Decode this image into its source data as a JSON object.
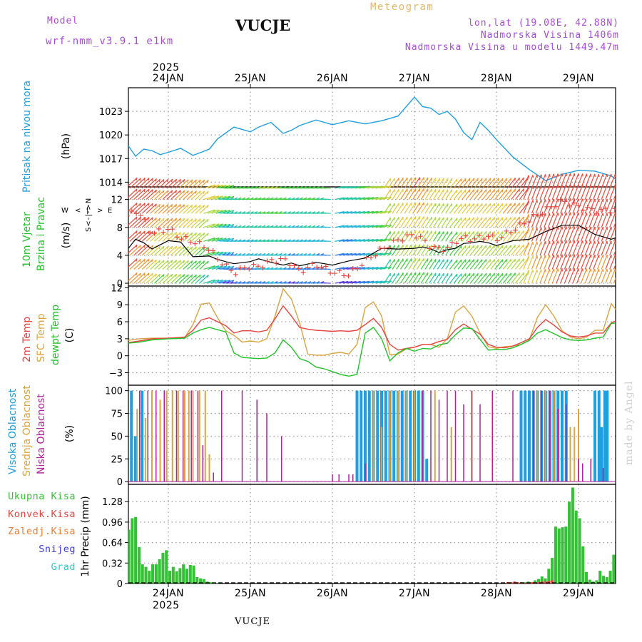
{
  "header": {
    "model_label": "Model",
    "model_name": "wrf-nmm_v3.9.1 e1km",
    "station": "VUCJE",
    "meteogram": "Meteogram",
    "lonlat": "lon,lat (19.08E, 42.88N)",
    "elevation": "Nadmorska Visina 1406m",
    "model_elevation": "Nadmorska Visina u modelu 1449.47m"
  },
  "footer": {
    "station": "VUCJE",
    "watermark": "made by Angel"
  },
  "colors": {
    "pressure": "#1f9fdf",
    "t2m": "#e8433e",
    "tsfc": "#d9a441",
    "dewpt": "#22c22a",
    "high_cloud": "#1f9fdf",
    "mid_cloud": "#d9a441",
    "low_cloud": "#b0229b",
    "total_precip": "#35c135",
    "conv_precip": "#e8433e",
    "frz_precip": "#ef7b2f",
    "snow": "#3a3adf",
    "hail": "#30c8c8",
    "header_purple": "#a64dd6",
    "header_gold": "#e5b865"
  },
  "time_axis": {
    "year": "2025",
    "dates": [
      "24JAN",
      "25JAN",
      "26JAN",
      "27JAN",
      "28JAN",
      "29JAN"
    ]
  },
  "chart_data": [
    {
      "type": "line",
      "name": "pressure",
      "ylabel": "Pritisak na nivou mora",
      "unit": "(hPa)",
      "yticks": [
        1014,
        1017,
        1020,
        1023
      ],
      "ylim": [
        1013.4,
        1026.0
      ],
      "x_days_from_24jan_00": [
        -0.5,
        -0.4,
        -0.3,
        -0.2,
        -0.1,
        0,
        0.15,
        0.3,
        0.5,
        0.6,
        0.8,
        1.0,
        1.1,
        1.25,
        1.4,
        1.5,
        1.6,
        1.8,
        2.0,
        2.2,
        2.4,
        2.6,
        2.8,
        3.0,
        3.1,
        3.2,
        3.3,
        3.4,
        3.5,
        3.6,
        3.7,
        3.8,
        3.9,
        4.0,
        4.2,
        4.4,
        4.6,
        4.8,
        5.0,
        5.2,
        5.4,
        5.5
      ],
      "series": [
        {
          "values": [
            1018.8,
            1017.3,
            1018.2,
            1018.0,
            1017.5,
            1017.8,
            1018.3,
            1017.4,
            1018.2,
            1019.5,
            1021.0,
            1020.4,
            1021.0,
            1021.6,
            1020.2,
            1020.6,
            1021.2,
            1021.9,
            1021.3,
            1021.8,
            1021.4,
            1021.8,
            1022.4,
            1024.8,
            1023.6,
            1023.4,
            1022.6,
            1023.0,
            1022.0,
            1020.3,
            1019.4,
            1021.6,
            1020.6,
            1019.4,
            1017.2,
            1015.6,
            1014.2,
            1015.0,
            1015.5,
            1015.4,
            1014.8,
            1014.0
          ]
        }
      ]
    },
    {
      "type": "line",
      "name": "wind",
      "ylabel": "10m Vjetar Brzina i Pravac",
      "unit": "(m/s)",
      "direction_legend": "W <-|-> E, S <-|-> N",
      "yticks": [
        0,
        4,
        8,
        12
      ],
      "ylim": [
        -0.4,
        13.8
      ],
      "x_days_from_24jan_00": [
        -0.5,
        -0.4,
        -0.3,
        -0.2,
        -0.1,
        0,
        0.15,
        0.3,
        0.5,
        0.6,
        0.8,
        1.0,
        1.1,
        1.25,
        1.4,
        1.5,
        1.6,
        1.8,
        2.0,
        2.2,
        2.4,
        2.6,
        2.8,
        3.0,
        3.1,
        3.2,
        3.3,
        3.4,
        3.5,
        3.6,
        3.7,
        3.8,
        3.9,
        4.0,
        4.2,
        4.4,
        4.6,
        4.8,
        5.0,
        5.2,
        5.4,
        5.5
      ],
      "series": [
        {
          "values": [
            4.8,
            6.3,
            5.8,
            4.9,
            5.5,
            6.1,
            5.9,
            3.8,
            3.9,
            3.4,
            2.8,
            3.1,
            3.5,
            3.0,
            2.6,
            2.9,
            2.5,
            3.0,
            2.6,
            3.2,
            3.6,
            5.0,
            4.9,
            5.0,
            5.2,
            4.9,
            4.4,
            4.8,
            5.0,
            5.7,
            5.8,
            6.0,
            5.8,
            5.4,
            6.1,
            6.3,
            7.4,
            8.3,
            8.3,
            7.0,
            6.3,
            6.7
          ]
        },
        {
          "values": [
            9.5,
            10.5,
            9.2,
            7.0,
            7.5,
            7.8,
            6.5,
            6.0,
            4.9,
            3.5,
            1.5,
            2.5,
            2.3,
            3.2,
            3.4,
            2.8,
            1.7,
            2.7,
            1.6,
            1.2,
            3.2,
            4.8,
            6.2,
            7.0,
            6.3,
            5.2,
            4.9,
            5.0,
            6.0,
            6.5,
            6.3,
            6.5,
            6.8,
            6.3,
            7.6,
            9.1,
            10.5,
            11.8,
            11.0,
            10.4,
            10.5,
            10.8
          ]
        }
      ]
    },
    {
      "type": "line",
      "name": "temperature",
      "ylabels": [
        "2m Temp",
        "SFC Temp",
        "dewpt Temp"
      ],
      "unit": "(C)",
      "yticks": [
        -3,
        0,
        3,
        6,
        9,
        12
      ],
      "ylim": [
        -5.2,
        12.3
      ],
      "x_days_from_24jan_00": [
        -0.5,
        -0.35,
        -0.2,
        0,
        0.2,
        0.3,
        0.4,
        0.5,
        0.6,
        0.7,
        0.8,
        0.9,
        1.0,
        1.1,
        1.2,
        1.3,
        1.4,
        1.5,
        1.6,
        1.7,
        1.8,
        1.9,
        2.0,
        2.1,
        2.2,
        2.3,
        2.4,
        2.5,
        2.6,
        2.7,
        2.8,
        2.9,
        3.0,
        3.1,
        3.2,
        3.3,
        3.4,
        3.5,
        3.6,
        3.7,
        3.8,
        3.9,
        4.0,
        4.1,
        4.2,
        4.3,
        4.4,
        4.5,
        4.6,
        4.7,
        4.8,
        4.9,
        5.0,
        5.1,
        5.2,
        5.3,
        5.4,
        5.5
      ],
      "series": [
        {
          "values": [
            2.3,
            2.6,
            3.0,
            3.1,
            3.3,
            4.5,
            6.3,
            6.7,
            6.0,
            5.3,
            4.0,
            4.4,
            4.4,
            4.2,
            4.5,
            6.5,
            8.8,
            7.0,
            5.0,
            4.7,
            4.5,
            4.4,
            4.3,
            4.4,
            4.3,
            4.5,
            5.5,
            6.6,
            5.0,
            2.0,
            1.0,
            1.3,
            1.5,
            2.0,
            2.0,
            2.5,
            2.9,
            4.6,
            5.6,
            4.7,
            3.8,
            2.0,
            1.5,
            1.4,
            1.7,
            2.3,
            3.0,
            5.0,
            6.4,
            5.4,
            4.2,
            3.5,
            3.3,
            3.5,
            4.0,
            4.0,
            5.8,
            6.4
          ]
        },
        {
          "values": [
            2.7,
            3.0,
            3.1,
            3.1,
            3.2,
            5.5,
            9.1,
            9.3,
            6.7,
            4.4,
            3.6,
            2.4,
            2.6,
            2.4,
            3.0,
            7.0,
            11.8,
            10.0,
            5.8,
            0.3,
            0.1,
            0.1,
            0.4,
            0.6,
            0.3,
            2.0,
            8.5,
            9.5,
            7.0,
            0.2,
            0.3,
            1.2,
            1.5,
            2.0,
            2.0,
            1.5,
            3.0,
            7.7,
            8.8,
            7.0,
            4.0,
            1.6,
            1.3,
            1.6,
            1.7,
            2.0,
            2.8,
            6.8,
            9.0,
            7.0,
            4.4,
            3.3,
            3.0,
            3.3,
            4.5,
            4.5,
            9.2,
            7.3
          ]
        },
        {
          "values": [
            2.2,
            2.4,
            2.8,
            3.0,
            3.1,
            4.0,
            4.6,
            5.0,
            4.6,
            4.2,
            0.5,
            -0.3,
            -0.4,
            -0.5,
            -0.4,
            0.5,
            2.8,
            1.5,
            -0.5,
            -1.0,
            -2.0,
            -2.3,
            -2.8,
            -3.3,
            -3.6,
            -3.3,
            4.0,
            5.0,
            3.0,
            -0.9,
            0.5,
            1.3,
            0.8,
            1.3,
            1.2,
            1.9,
            2.2,
            3.7,
            4.9,
            4.8,
            2.9,
            1.0,
            1.1,
            1.1,
            1.4,
            2.0,
            2.7,
            4.0,
            4.6,
            3.9,
            3.2,
            2.8,
            2.7,
            2.8,
            3.1,
            3.3,
            5.7,
            5.8
          ]
        }
      ]
    },
    {
      "type": "bar",
      "name": "cloudiness",
      "ylabels": [
        "Visoka Oblacnost",
        "Srednja Oblacnost",
        "Niska Oblacnost"
      ],
      "unit": "(%)",
      "yticks": [
        0,
        25,
        50,
        75,
        100
      ],
      "ylim": [
        -3,
        106
      ],
      "high_clouds": {
        "x": [
          -0.45,
          -0.4,
          -0.32,
          2.3,
          2.35,
          2.4,
          2.45,
          2.5,
          2.55,
          2.6,
          2.65,
          2.7,
          2.75,
          2.8,
          2.85,
          2.9,
          2.95,
          3.0,
          3.05,
          3.1,
          3.15,
          4.3,
          4.35,
          4.4,
          4.45,
          4.5,
          4.55,
          4.6,
          4.65,
          4.7,
          4.75,
          4.8,
          4.85,
          5.2,
          5.25,
          5.28,
          5.32,
          5.35
        ],
        "values": [
          100,
          50,
          100,
          100,
          100,
          100,
          100,
          100,
          100,
          100,
          100,
          100,
          100,
          100,
          100,
          100,
          100,
          100,
          100,
          100,
          25,
          100,
          100,
          100,
          100,
          100,
          100,
          100,
          100,
          100,
          100,
          100,
          100,
          100,
          100,
          60,
          100,
          100
        ]
      },
      "mid_clouds": {
        "x": [
          -0.38,
          -0.28,
          -0.2,
          -0.1,
          -0.02,
          0.05,
          0.12,
          0.2,
          0.25,
          0.3,
          0.38,
          0.45,
          0.5,
          2.5,
          2.6,
          2.7,
          2.8,
          2.9,
          3.0,
          3.1,
          3.25,
          3.45,
          3.7,
          4.5,
          4.6,
          4.7,
          4.9,
          4.95,
          5.0,
          5.5
        ],
        "values": [
          80,
          70,
          100,
          90,
          100,
          100,
          100,
          100,
          100,
          100,
          100,
          100,
          30,
          100,
          60,
          100,
          100,
          100,
          100,
          100,
          100,
          60,
          100,
          100,
          100,
          100,
          60,
          60,
          80,
          38
        ]
      },
      "low_clouds": {
        "x": [
          -0.35,
          -0.25,
          -0.15,
          -0.05,
          0.1,
          0.18,
          0.28,
          0.36,
          0.42,
          0.55,
          0.65,
          0.9,
          1.08,
          1.2,
          1.38,
          2.0,
          2.08,
          2.2,
          2.25,
          2.4,
          3.1,
          3.2,
          3.3,
          3.4,
          3.5,
          3.6,
          3.7,
          3.8,
          3.95,
          4.2,
          4.45,
          4.55,
          4.65,
          4.75,
          4.85,
          5.0,
          5.05,
          5.15,
          5.3,
          5.5
        ],
        "values": [
          100,
          100,
          100,
          100,
          100,
          100,
          100,
          100,
          40,
          10,
          100,
          100,
          90,
          75,
          50,
          8,
          8,
          8,
          8,
          20,
          100,
          100,
          90,
          100,
          100,
          85,
          100,
          85,
          100,
          100,
          100,
          100,
          100,
          80,
          85,
          25,
          20,
          25,
          15,
          20
        ]
      }
    },
    {
      "type": "bar",
      "name": "precipitation",
      "ylabels": [
        "Ukupna Kisa",
        "Konvek.Kisa",
        "Zaledj.Kisa",
        "Snijeg",
        "Grad"
      ],
      "ylabel": "1hr Precip (mm)",
      "yticks": [
        0,
        0.32,
        0.64,
        0.96,
        1.28
      ],
      "ylim": [
        0,
        1.55
      ],
      "total": [
        0.84,
        1.02,
        1.04,
        0.57,
        0.3,
        0.26,
        0.2,
        0.3,
        0.3,
        0.38,
        0.48,
        0.52,
        0.2,
        0.26,
        0.19,
        0.24,
        0.3,
        0.23,
        0.29,
        0.28,
        0.1,
        0.08,
        0.07,
        0.03,
        0.02,
        0.01,
        0.01,
        0.0,
        0.0,
        0.0
      ],
      "total_b": [
        0.02,
        0.01,
        0.02,
        0.01,
        0.02,
        0.02,
        0.03,
        0.02,
        0.05,
        0.07,
        0.11,
        0.08,
        0.23,
        0.4,
        0.89,
        0.86,
        0.88,
        0.89,
        1.28,
        1.5,
        1.14,
        1.02,
        0.58,
        0.18,
        0.06,
        0.03,
        0.05,
        0.2,
        0.12,
        0.1,
        0.2,
        0.45,
        0.44
      ],
      "convective": [
        0.02,
        0.02,
        0.03,
        0.02,
        0.01,
        0.01,
        0.01,
        0.02,
        0.02,
        0.02,
        0.03,
        0.03,
        0.04,
        0.05,
        0.06,
        0.05,
        0.05,
        0.06,
        0.16,
        0.18,
        0.15,
        0.1,
        0.05,
        0.02,
        0.01,
        0.01,
        0.01,
        0.03,
        0.02,
        0.02,
        0.03,
        0.05,
        0.12
      ]
    }
  ]
}
